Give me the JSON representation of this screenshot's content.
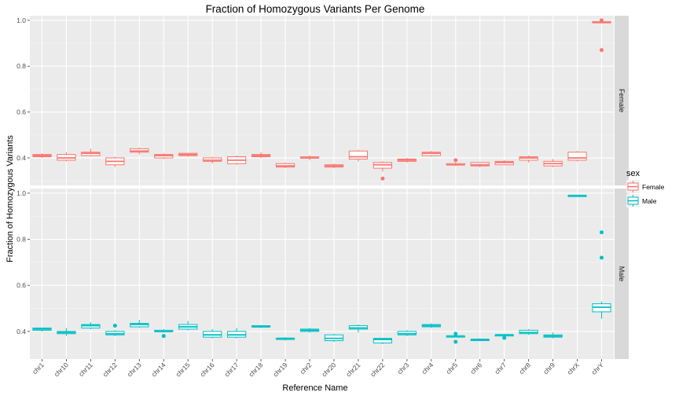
{
  "chart_data": {
    "type": "boxplot",
    "title": "Fraction of Homozygous Variants Per Genome",
    "xlabel": "Reference Name",
    "ylabel": "Fraction of Homozygous Variants",
    "categories": [
      "chr1",
      "chr10",
      "chr11",
      "chr12",
      "chr13",
      "chr14",
      "chr15",
      "chr16",
      "chr17",
      "chr18",
      "chr19",
      "chr2",
      "chr20",
      "chr21",
      "chr22",
      "chr3",
      "chr4",
      "chr5",
      "chr6",
      "chr7",
      "chr8",
      "chr9",
      "chrX",
      "chrY"
    ],
    "y_ticks": [
      "0.4",
      "0.6",
      "0.8",
      "1.0"
    ],
    "ylim_female": [
      0.28,
      1.02
    ],
    "ylim_male": [
      0.28,
      1.02
    ],
    "legend": {
      "title": "sex",
      "placement": "right",
      "entries": [
        {
          "name": "Female",
          "color": "#F8766D"
        },
        {
          "name": "Male",
          "color": "#00BFC4"
        }
      ]
    },
    "panels": [
      {
        "name": "Female",
        "color": "#F8766D",
        "boxes": [
          [
            0.4,
            0.405,
            0.41,
            0.415,
            0.42
          ],
          [
            0.385,
            0.39,
            0.4,
            0.415,
            0.425
          ],
          [
            0.405,
            0.41,
            0.42,
            0.425,
            0.44
          ],
          [
            0.36,
            0.37,
            0.385,
            0.4,
            0.405
          ],
          [
            0.415,
            0.425,
            0.43,
            0.44,
            0.445
          ],
          [
            0.395,
            0.4,
            0.41,
            0.415,
            0.42
          ],
          [
            0.405,
            0.41,
            0.415,
            0.42,
            0.42
          ],
          [
            0.375,
            0.385,
            0.39,
            0.4,
            0.405
          ],
          [
            0.37,
            0.375,
            0.39,
            0.405,
            0.41
          ],
          [
            0.4,
            0.405,
            0.41,
            0.415,
            0.425
          ],
          [
            0.355,
            0.36,
            0.365,
            0.375,
            0.38
          ],
          [
            0.39,
            0.4,
            0.4,
            0.405,
            0.41
          ],
          [
            0.355,
            0.36,
            0.365,
            0.37,
            0.375
          ],
          [
            0.385,
            0.395,
            0.405,
            0.43,
            0.435
          ],
          [
            0.34,
            0.355,
            0.37,
            0.38,
            0.385
          ],
          [
            0.38,
            0.385,
            0.39,
            0.395,
            0.4
          ],
          [
            0.405,
            0.41,
            0.42,
            0.425,
            0.43
          ],
          [
            0.365,
            0.37,
            0.37,
            0.375,
            0.38
          ],
          [
            0.36,
            0.365,
            0.37,
            0.38,
            0.38
          ],
          [
            0.37,
            0.37,
            0.38,
            0.385,
            0.39
          ],
          [
            0.38,
            0.39,
            0.4,
            0.405,
            0.41
          ],
          [
            0.36,
            0.365,
            0.375,
            0.385,
            0.395
          ],
          [
            0.385,
            0.39,
            0.4,
            0.425,
            0.43
          ],
          [
            0.99,
            0.99,
            0.99,
            0.995,
            0.995
          ]
        ],
        "outliers": [
          {
            "category": "chr22",
            "value": 0.31
          },
          {
            "category": "chr5",
            "value": 0.39
          },
          {
            "category": "chrY",
            "value": 1.0
          },
          {
            "category": "chrY",
            "value": 0.87
          }
        ]
      },
      {
        "name": "Male",
        "color": "#00BFC4",
        "boxes": [
          [
            0.4,
            0.405,
            0.41,
            0.415,
            0.415
          ],
          [
            0.38,
            0.39,
            0.395,
            0.4,
            0.415
          ],
          [
            0.41,
            0.415,
            0.425,
            0.43,
            0.44
          ],
          [
            0.38,
            0.385,
            0.39,
            0.4,
            0.405
          ],
          [
            0.415,
            0.42,
            0.43,
            0.435,
            0.45
          ],
          [
            0.395,
            0.4,
            0.4,
            0.405,
            0.41
          ],
          [
            0.405,
            0.41,
            0.42,
            0.43,
            0.445
          ],
          [
            0.37,
            0.375,
            0.385,
            0.4,
            0.41
          ],
          [
            0.37,
            0.375,
            0.385,
            0.4,
            0.415
          ],
          [
            0.415,
            0.42,
            0.42,
            0.425,
            0.425
          ],
          [
            0.36,
            0.365,
            0.37,
            0.37,
            0.375
          ],
          [
            0.395,
            0.4,
            0.405,
            0.41,
            0.415
          ],
          [
            0.355,
            0.36,
            0.37,
            0.385,
            0.39
          ],
          [
            0.395,
            0.41,
            0.415,
            0.425,
            0.43
          ],
          [
            0.345,
            0.35,
            0.365,
            0.37,
            0.37
          ],
          [
            0.38,
            0.385,
            0.39,
            0.4,
            0.405
          ],
          [
            0.415,
            0.42,
            0.425,
            0.43,
            0.435
          ],
          [
            0.375,
            0.375,
            0.38,
            0.38,
            0.385
          ],
          [
            0.36,
            0.36,
            0.365,
            0.365,
            0.37
          ],
          [
            0.38,
            0.38,
            0.385,
            0.385,
            0.39
          ],
          [
            0.385,
            0.39,
            0.395,
            0.405,
            0.41
          ],
          [
            0.37,
            0.375,
            0.38,
            0.385,
            0.395
          ],
          [
            0.985,
            0.985,
            0.99,
            0.99,
            0.99
          ],
          [
            0.455,
            0.485,
            0.505,
            0.52,
            0.53
          ]
        ],
        "outliers": [
          {
            "category": "chr12",
            "value": 0.425
          },
          {
            "category": "chr14",
            "value": 0.38
          },
          {
            "category": "chr5",
            "value": 0.39
          },
          {
            "category": "chr5",
            "value": 0.355
          },
          {
            "category": "chr7",
            "value": 0.372
          },
          {
            "category": "chrY",
            "value": 0.83
          },
          {
            "category": "chrY",
            "value": 0.72
          }
        ]
      }
    ]
  }
}
